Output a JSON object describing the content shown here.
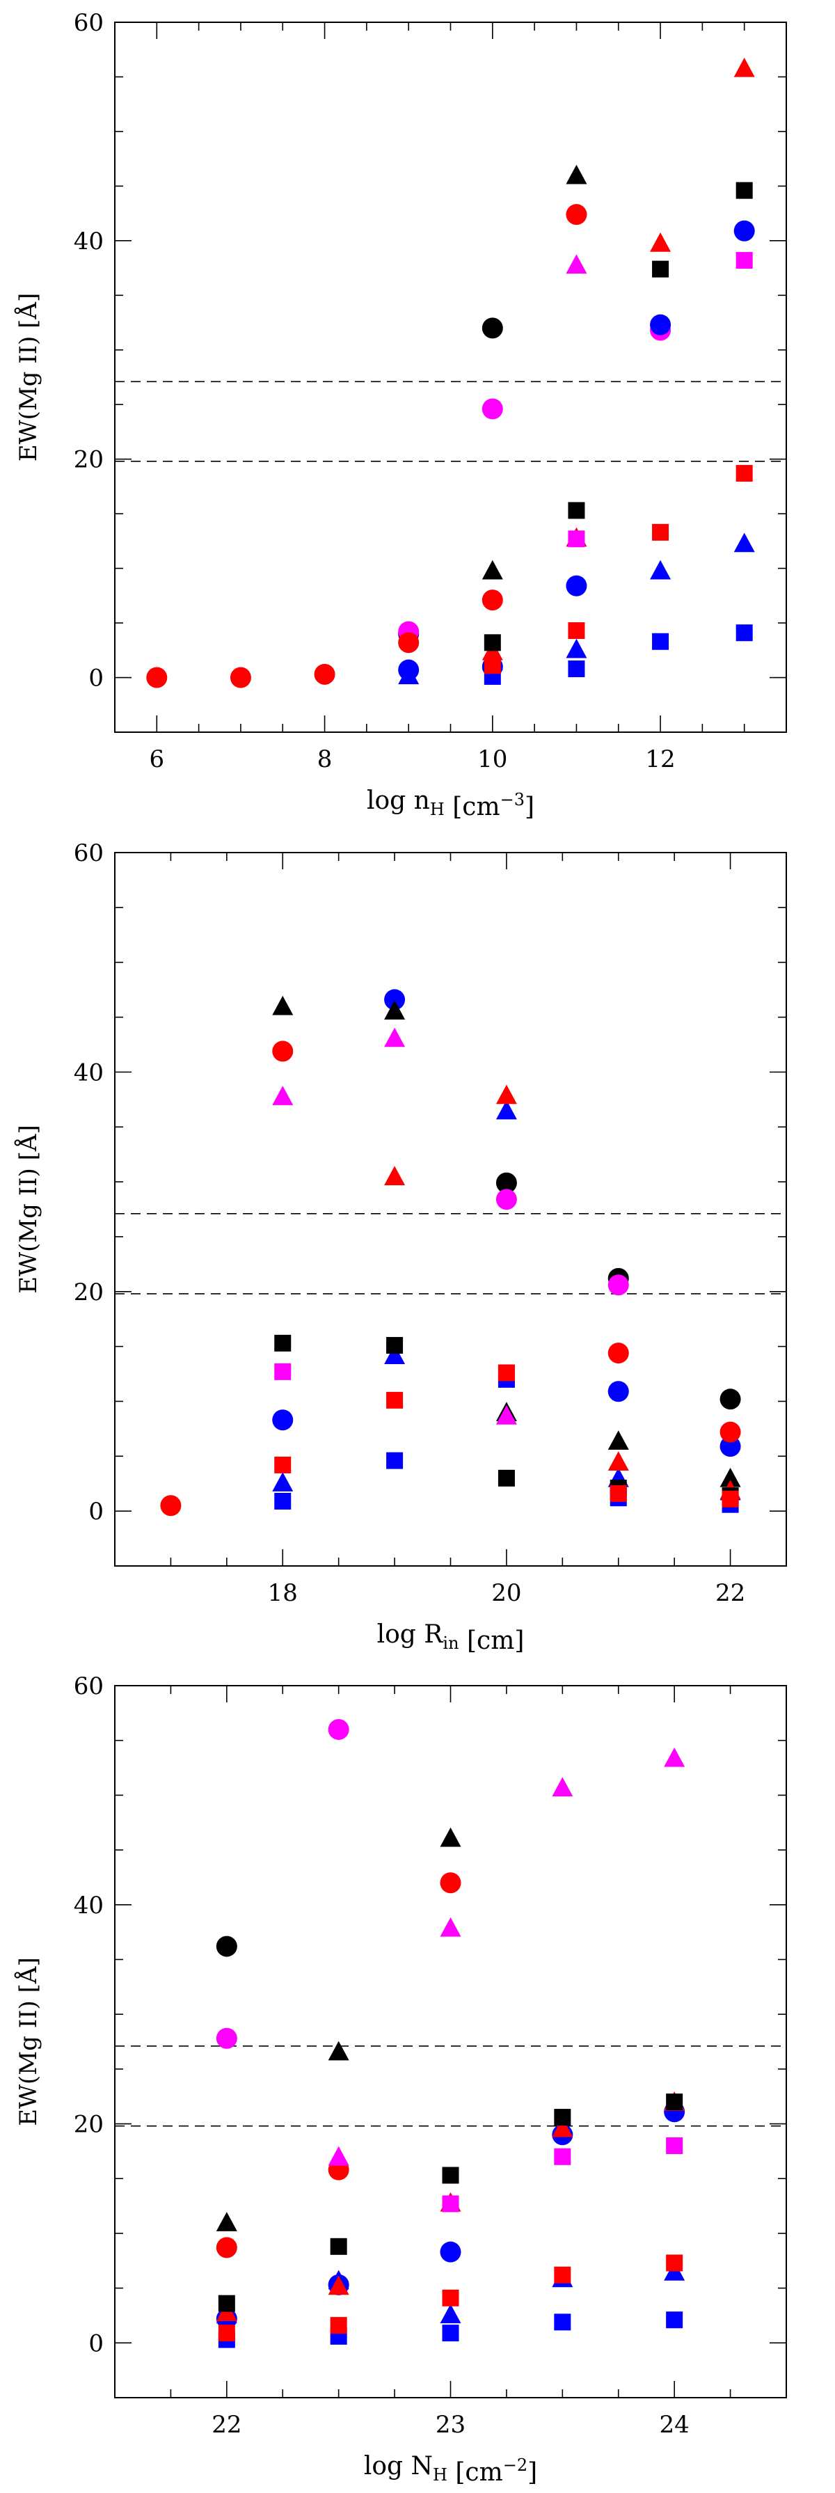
{
  "chart_data": [
    {
      "type": "scatter",
      "panel": "top",
      "xlabel_main": "log n",
      "xlabel_sub": "H",
      "xlabel_unit_pre": "[cm",
      "xlabel_unit_sup": "−3",
      "xlabel_unit_post": "]",
      "ylabel": "EW(Mg II) [Å]",
      "xlim": [
        5.5,
        13.5
      ],
      "ylim": [
        -5,
        60
      ],
      "xticks": [
        6,
        8,
        10,
        12
      ],
      "xticklabels": [
        "6",
        "8",
        "10",
        "12"
      ],
      "yticks": [
        0,
        20,
        40,
        60
      ],
      "yticklabels": [
        "0",
        "20",
        "40",
        "60"
      ],
      "hlines": [
        19.8,
        27.1
      ],
      "series": [
        {
          "name": "black-circle",
          "color": "#000000",
          "marker": "circle",
          "points": [
            [
              9,
              4.0
            ],
            [
              10,
              32.0
            ]
          ]
        },
        {
          "name": "magenta-circle",
          "color": "#ff00ff",
          "marker": "circle",
          "points": [
            [
              9,
              4.2
            ],
            [
              10,
              24.6
            ],
            [
              12,
              31.8
            ]
          ]
        },
        {
          "name": "blue-circle",
          "color": "#0000ff",
          "marker": "circle",
          "points": [
            [
              9,
              0.7
            ],
            [
              10,
              1.0
            ],
            [
              11,
              8.4
            ],
            [
              12,
              32.3
            ],
            [
              13,
              40.9
            ]
          ]
        },
        {
          "name": "red-circle",
          "color": "#ff0000",
          "marker": "circle",
          "points": [
            [
              6,
              0.0
            ],
            [
              7,
              0.0
            ],
            [
              8,
              0.3
            ],
            [
              9,
              3.2
            ],
            [
              10,
              7.1
            ],
            [
              11,
              42.4
            ]
          ]
        },
        {
          "name": "black-triangle",
          "color": "#000000",
          "marker": "triangle",
          "points": [
            [
              10,
              9.8
            ],
            [
              11,
              46.0
            ]
          ]
        },
        {
          "name": "magenta-triangle",
          "color": "#ff00ff",
          "marker": "triangle",
          "points": [
            [
              11,
              37.8
            ]
          ]
        },
        {
          "name": "blue-triangle",
          "color": "#0000ff",
          "marker": "triangle",
          "points": [
            [
              9,
              0.2
            ],
            [
              10,
              1.5
            ],
            [
              11,
              2.6
            ],
            [
              12,
              9.8
            ],
            [
              13,
              12.3
            ]
          ]
        },
        {
          "name": "red-triangle",
          "color": "#ff0000",
          "marker": "triangle",
          "points": [
            [
              10,
              2.4
            ],
            [
              11,
              12.8
            ],
            [
              12,
              39.8
            ],
            [
              13,
              55.8
            ]
          ]
        },
        {
          "name": "black-square",
          "color": "#000000",
          "marker": "square",
          "points": [
            [
              10,
              3.2
            ],
            [
              11,
              15.3
            ],
            [
              12,
              37.4
            ],
            [
              13,
              44.6
            ]
          ]
        },
        {
          "name": "magenta-square",
          "color": "#ff00ff",
          "marker": "square",
          "points": [
            [
              11,
              12.7
            ],
            [
              13,
              38.2
            ]
          ]
        },
        {
          "name": "blue-square",
          "color": "#0000ff",
          "marker": "square",
          "points": [
            [
              10,
              0.1
            ],
            [
              11,
              0.8
            ],
            [
              12,
              3.3
            ],
            [
              13,
              4.1
            ]
          ]
        },
        {
          "name": "red-square",
          "color": "#ff0000",
          "marker": "square",
          "points": [
            [
              10,
              1.1
            ],
            [
              11,
              4.3
            ],
            [
              12,
              13.3
            ],
            [
              13,
              18.7
            ]
          ]
        }
      ]
    },
    {
      "type": "scatter",
      "panel": "middle",
      "xlabel_main": "log R",
      "xlabel_sub": "in",
      "xlabel_unit_pre": "[cm]",
      "xlabel_unit_sup": "",
      "xlabel_unit_post": "",
      "ylabel": "EW(Mg II) [Å]",
      "xlim": [
        16.5,
        22.5
      ],
      "ylim": [
        -5,
        60
      ],
      "xticks": [
        18,
        20,
        22
      ],
      "xticklabels": [
        "18",
        "20",
        "22"
      ],
      "yticks": [
        0,
        20,
        40,
        60
      ],
      "yticklabels": [
        "0",
        "20",
        "40",
        "60"
      ],
      "hlines": [
        19.8,
        27.1
      ],
      "series": [
        {
          "name": "black-circle",
          "color": "#000000",
          "marker": "circle",
          "points": [
            [
              20,
              29.9
            ],
            [
              21,
              21.2
            ],
            [
              22,
              10.2
            ]
          ]
        },
        {
          "name": "magenta-circle",
          "color": "#ff00ff",
          "marker": "circle",
          "points": [
            [
              20,
              28.4
            ],
            [
              21,
              20.6
            ]
          ]
        },
        {
          "name": "blue-circle",
          "color": "#0000ff",
          "marker": "circle",
          "points": [
            [
              18,
              8.3
            ],
            [
              19,
              46.6
            ],
            [
              21,
              10.9
            ],
            [
              22,
              5.9
            ]
          ]
        },
        {
          "name": "red-circle",
          "color": "#ff0000",
          "marker": "circle",
          "points": [
            [
              17,
              0.5
            ],
            [
              18,
              41.9
            ],
            [
              21,
              14.4
            ],
            [
              22,
              7.2
            ]
          ]
        },
        {
          "name": "black-triangle",
          "color": "#000000",
          "marker": "triangle",
          "points": [
            [
              18,
              46.0
            ],
            [
              19,
              45.6
            ],
            [
              20,
              9.0
            ],
            [
              21,
              6.4
            ],
            [
              22,
              3.0
            ]
          ]
        },
        {
          "name": "magenta-triangle",
          "color": "#ff00ff",
          "marker": "triangle",
          "points": [
            [
              18,
              37.8
            ],
            [
              19,
              43.1
            ],
            [
              20,
              8.7
            ]
          ]
        },
        {
          "name": "blue-triangle",
          "color": "#0000ff",
          "marker": "triangle",
          "points": [
            [
              18,
              2.6
            ],
            [
              19,
              14.2
            ],
            [
              20,
              36.5
            ],
            [
              21,
              3.0
            ],
            [
              22,
              1.8
            ]
          ]
        },
        {
          "name": "red-triangle",
          "color": "#ff0000",
          "marker": "triangle",
          "points": [
            [
              19,
              30.5
            ],
            [
              20,
              37.9
            ],
            [
              21,
              4.5
            ],
            [
              22,
              1.9
            ]
          ]
        },
        {
          "name": "black-square",
          "color": "#000000",
          "marker": "square",
          "points": [
            [
              18,
              15.3
            ],
            [
              19,
              15.1
            ],
            [
              20,
              3.0
            ],
            [
              21,
              2.1
            ],
            [
              22,
              1.4
            ]
          ]
        },
        {
          "name": "magenta-square",
          "color": "#ff00ff",
          "marker": "square",
          "points": [
            [
              18,
              12.7
            ],
            [
              20,
              12.4
            ]
          ]
        },
        {
          "name": "blue-square",
          "color": "#0000ff",
          "marker": "square",
          "points": [
            [
              18,
              0.9
            ],
            [
              19,
              4.6
            ],
            [
              20,
              12.0
            ],
            [
              21,
              1.2
            ],
            [
              22,
              0.6
            ]
          ]
        },
        {
          "name": "red-square",
          "color": "#ff0000",
          "marker": "square",
          "points": [
            [
              18,
              4.2
            ],
            [
              19,
              10.1
            ],
            [
              20,
              12.6
            ],
            [
              21,
              1.6
            ],
            [
              22,
              1.1
            ]
          ]
        }
      ]
    },
    {
      "type": "scatter",
      "panel": "bottom",
      "xlabel_main": "log N",
      "xlabel_sub": "H",
      "xlabel_unit_pre": "[cm",
      "xlabel_unit_sup": "−2",
      "xlabel_unit_post": "]",
      "ylabel": "EW(Mg II) [Å]",
      "xlim": [
        21.5,
        24.5
      ],
      "ylim": [
        -5,
        60
      ],
      "xticks": [
        22,
        23,
        24
      ],
      "xticklabels": [
        "22",
        "23",
        "24"
      ],
      "yticks": [
        0,
        20,
        40,
        60
      ],
      "yticklabels": [
        "0",
        "20",
        "40",
        "60"
      ],
      "hlines": [
        19.8,
        27.1
      ],
      "series": [
        {
          "name": "black-circle",
          "color": "#000000",
          "marker": "circle",
          "points": [
            [
              22,
              36.2
            ]
          ]
        },
        {
          "name": "magenta-circle",
          "color": "#ff00ff",
          "marker": "circle",
          "points": [
            [
              22,
              27.8
            ],
            [
              22.5,
              56.0
            ]
          ]
        },
        {
          "name": "blue-circle",
          "color": "#0000ff",
          "marker": "circle",
          "points": [
            [
              22,
              2.2
            ],
            [
              22.5,
              5.3
            ],
            [
              23,
              8.3
            ],
            [
              23.5,
              19.0
            ],
            [
              24,
              21.1
            ]
          ]
        },
        {
          "name": "red-circle",
          "color": "#ff0000",
          "marker": "circle",
          "points": [
            [
              22,
              8.7
            ],
            [
              22.5,
              15.8
            ],
            [
              23,
              42.0
            ]
          ]
        },
        {
          "name": "black-triangle",
          "color": "#000000",
          "marker": "triangle",
          "points": [
            [
              22,
              11.0
            ],
            [
              22.5,
              26.6
            ],
            [
              23,
              46.1
            ]
          ]
        },
        {
          "name": "magenta-triangle",
          "color": "#ff00ff",
          "marker": "triangle",
          "points": [
            [
              22.5,
              17.0
            ],
            [
              23,
              37.9
            ],
            [
              23.5,
              50.7
            ],
            [
              24,
              53.4
            ]
          ]
        },
        {
          "name": "blue-triangle",
          "color": "#0000ff",
          "marker": "triangle",
          "points": [
            [
              22,
              2.6
            ],
            [
              22.5,
              5.7
            ],
            [
              23,
              2.6
            ],
            [
              23.5,
              5.9
            ],
            [
              24,
              6.5
            ]
          ]
        },
        {
          "name": "red-triangle",
          "color": "#ff0000",
          "marker": "triangle",
          "points": [
            [
              22,
              2.8
            ],
            [
              22.5,
              5.2
            ],
            [
              23,
              12.8
            ],
            [
              23.5,
              19.6
            ],
            [
              24,
              22.0
            ]
          ]
        },
        {
          "name": "black-square",
          "color": "#000000",
          "marker": "square",
          "points": [
            [
              22,
              3.6
            ],
            [
              22.5,
              8.8
            ],
            [
              23,
              15.3
            ],
            [
              23.5,
              20.6
            ],
            [
              24,
              22.0
            ]
          ]
        },
        {
          "name": "magenta-square",
          "color": "#ff00ff",
          "marker": "square",
          "points": [
            [
              23,
              12.7
            ],
            [
              23.5,
              17.0
            ],
            [
              24,
              18.0
            ]
          ]
        },
        {
          "name": "blue-square",
          "color": "#0000ff",
          "marker": "square",
          "points": [
            [
              22,
              0.3
            ],
            [
              22.5,
              0.6
            ],
            [
              23,
              0.9
            ],
            [
              23.5,
              1.9
            ],
            [
              24,
              2.1
            ]
          ]
        },
        {
          "name": "red-square",
          "color": "#ff0000",
          "marker": "square",
          "points": [
            [
              22,
              0.9
            ],
            [
              22.5,
              1.6
            ],
            [
              23,
              4.1
            ],
            [
              23.5,
              6.2
            ],
            [
              24,
              7.3
            ]
          ]
        }
      ]
    }
  ]
}
